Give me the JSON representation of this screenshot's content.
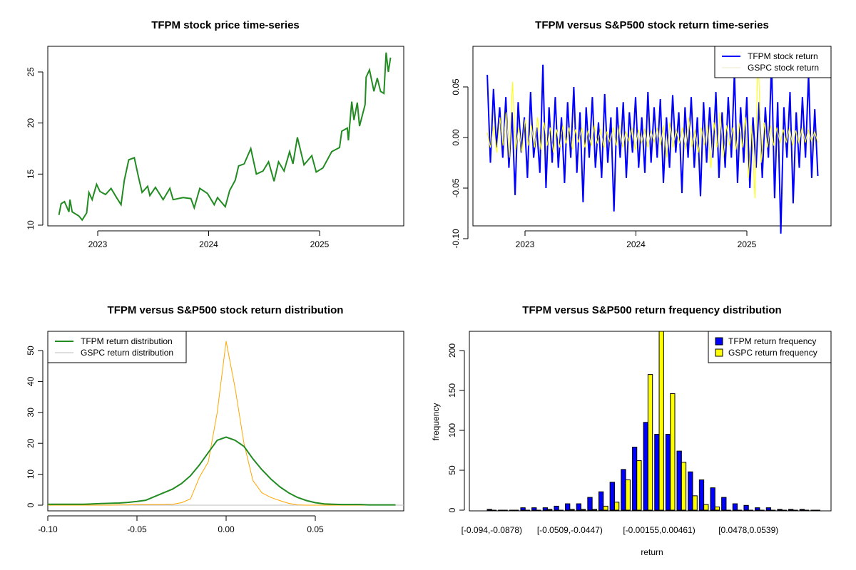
{
  "chart_data": [
    {
      "type": "line",
      "title": "TFPM stock price time-series",
      "xlabel": "",
      "ylabel": "",
      "xticks": [
        "2023",
        "2024",
        "2025"
      ],
      "xtick_values": [
        2023,
        2024,
        2025
      ],
      "yticks": [
        "10",
        "15",
        "20",
        "25"
      ],
      "ytick_values": [
        10,
        15,
        20,
        25
      ],
      "xlim": [
        2022.55,
        2025.75
      ],
      "ylim": [
        9.95,
        27.6
      ],
      "color": "#228B22",
      "x": [
        2022.65,
        2022.67,
        2022.7,
        2022.74,
        2022.75,
        2022.77,
        2022.83,
        2022.86,
        2022.9,
        2022.92,
        2022.95,
        2022.99,
        2023.02,
        2023.07,
        2023.12,
        2023.17,
        2023.21,
        2023.24,
        2023.28,
        2023.33,
        2023.37,
        2023.4,
        2023.45,
        2023.47,
        2023.52,
        2023.59,
        2023.65,
        2023.68,
        2023.77,
        2023.84,
        2023.87,
        2023.92,
        2023.99,
        2024.05,
        2024.08,
        2024.15,
        2024.19,
        2024.24,
        2024.27,
        2024.32,
        2024.38,
        2024.43,
        2024.49,
        2024.54,
        2024.59,
        2024.63,
        2024.68,
        2024.73,
        2024.76,
        2024.8,
        2024.86,
        2024.93,
        2024.97,
        2025.03,
        2025.11,
        2025.18,
        2025.2,
        2025.25,
        2025.26,
        2025.29,
        2025.31,
        2025.34,
        2025.36,
        2025.41,
        2025.42,
        2025.45,
        2025.49,
        2025.52,
        2025.55,
        2025.58,
        2025.6,
        2025.62,
        2025.64
      ],
      "y": [
        11.0,
        12.1,
        12.3,
        11.3,
        12.5,
        11.3,
        10.9,
        10.5,
        11.2,
        13.2,
        12.5,
        14.0,
        13.3,
        13.0,
        13.6,
        12.7,
        12.0,
        14.4,
        16.4,
        16.6,
        14.6,
        13.2,
        13.8,
        12.9,
        13.7,
        12.5,
        13.6,
        12.5,
        12.7,
        12.6,
        11.7,
        13.6,
        13.1,
        12.0,
        12.7,
        11.8,
        13.4,
        14.4,
        15.8,
        16.0,
        17.5,
        15.0,
        15.3,
        16.2,
        14.3,
        16.2,
        15.3,
        17.2,
        16.0,
        18.6,
        15.9,
        16.8,
        15.2,
        15.6,
        17.2,
        17.6,
        19.2,
        19.5,
        18.3,
        22.1,
        20.3,
        22.0,
        19.7,
        21.8,
        24.5,
        25.2,
        23.1,
        24.4,
        23.1,
        22.9,
        26.9,
        25.0,
        26.4
      ]
    },
    {
      "type": "line",
      "title": "TFPM versus S&P500 stock return time-series",
      "xticks": [
        "2023",
        "2024",
        "2025"
      ],
      "xtick_values": [
        2023,
        2024,
        2025
      ],
      "yticks": [
        "-0.10",
        "-0.05",
        "0.00",
        "0.05"
      ],
      "ytick_values": [
        -0.1,
        -0.05,
        0.0,
        0.05
      ],
      "xlim": [
        2022.55,
        2025.75
      ],
      "ylim": [
        -0.1,
        0.09
      ],
      "x_start": 2022.66,
      "x_end": 2025.64,
      "legend_position": "top-right",
      "series": [
        {
          "name": "TFPM stock return",
          "color": "#0000FF",
          "values": [
            0.062,
            -0.025,
            0.048,
            -0.01,
            0.03,
            -0.02,
            0.04,
            -0.03,
            0.025,
            -0.057,
            0.035,
            -0.015,
            0.02,
            -0.04,
            0.045,
            -0.02,
            0.01,
            -0.035,
            0.072,
            -0.05,
            0.03,
            -0.025,
            0.04,
            -0.03,
            0.02,
            -0.045,
            0.035,
            -0.02,
            0.05,
            -0.035,
            0.025,
            -0.064,
            0.03,
            -0.02,
            0.04,
            -0.03,
            0.015,
            -0.04,
            0.043,
            -0.025,
            0.02,
            -0.073,
            0.03,
            -0.02,
            0.035,
            -0.04,
            0.025,
            -0.015,
            0.04,
            -0.03,
            0.02,
            -0.035,
            0.045,
            -0.025,
            0.03,
            -0.02,
            0.038,
            -0.045,
            0.02,
            -0.03,
            0.042,
            -0.015,
            0.025,
            -0.055,
            0.03,
            -0.02,
            0.04,
            -0.03,
            0.02,
            -0.058,
            0.035,
            -0.025,
            0.03,
            -0.02,
            0.045,
            -0.04,
            0.025,
            -0.03,
            0.04,
            -0.02,
            0.065,
            -0.045,
            0.03,
            -0.025,
            0.04,
            -0.05,
            0.02,
            -0.03,
            0.035,
            -0.04,
            0.03,
            -0.02,
            0.075,
            -0.06,
            0.035,
            -0.095,
            0.03,
            -0.02,
            0.045,
            -0.065,
            0.025,
            -0.03,
            0.04,
            -0.02,
            0.063,
            -0.04,
            0.028,
            -0.038
          ]
        },
        {
          "name": "GSPC stock return",
          "color": "#FFFF00",
          "values": [
            0.005,
            -0.01,
            0.012,
            -0.015,
            0.02,
            -0.008,
            0.025,
            -0.02,
            0.055,
            -0.012,
            0.01,
            -0.015,
            0.018,
            -0.008,
            0.012,
            -0.01,
            0.02,
            -0.012,
            0.015,
            -0.008,
            0.01,
            -0.015,
            0.008,
            -0.01,
            0.012,
            -0.006,
            0.01,
            -0.012,
            0.008,
            -0.005,
            0.01,
            -0.01,
            0.007,
            -0.008,
            0.012,
            -0.006,
            0.009,
            -0.01,
            0.006,
            -0.005,
            0.01,
            -0.008,
            0.012,
            -0.01,
            0.006,
            -0.004,
            0.01,
            -0.012,
            0.008,
            -0.006,
            0.009,
            -0.01,
            0.007,
            -0.005,
            0.01,
            -0.008,
            0.012,
            -0.02,
            0.015,
            -0.01,
            0.008,
            -0.006,
            0.01,
            -0.012,
            0.02,
            -0.01,
            0.008,
            -0.015,
            0.01,
            -0.008,
            0.012,
            -0.03,
            0.015,
            -0.01,
            0.025,
            -0.02,
            0.012,
            -0.008,
            0.01,
            -0.012,
            0.015,
            -0.01,
            0.02,
            -0.04,
            0.012,
            -0.06,
            0.09,
            -0.025,
            0.015,
            -0.01,
            0.012,
            -0.008,
            0.01,
            -0.006,
            0.008,
            -0.005,
            0.01,
            -0.008,
            0.007,
            -0.006,
            0.01,
            -0.005,
            0.008,
            -0.004,
            0.006,
            -0.005
          ]
        }
      ]
    },
    {
      "type": "line",
      "title": "TFPM versus S&P500 stock return distribution",
      "xticks": [
        "-0.10",
        "-0.05",
        "0.00",
        "0.05"
      ],
      "xtick_values": [
        -0.1,
        -0.05,
        0.0,
        0.05
      ],
      "yticks": [
        "0",
        "10",
        "20",
        "30",
        "40",
        "50"
      ],
      "ytick_values": [
        0,
        10,
        20,
        30,
        40,
        50
      ],
      "xlim": [
        -0.1,
        0.1
      ],
      "ylim": [
        -2,
        56
      ],
      "legend_position": "top-left",
      "x": [
        -0.1,
        -0.095,
        -0.09,
        -0.085,
        -0.08,
        -0.075,
        -0.07,
        -0.065,
        -0.06,
        -0.055,
        -0.05,
        -0.045,
        -0.04,
        -0.035,
        -0.03,
        -0.025,
        -0.02,
        -0.015,
        -0.01,
        -0.005,
        0,
        0.005,
        0.01,
        0.015,
        0.02,
        0.025,
        0.03,
        0.035,
        0.04,
        0.045,
        0.05,
        0.055,
        0.06,
        0.065,
        0.07,
        0.075,
        0.08,
        0.085,
        0.09,
        0.095
      ],
      "series": [
        {
          "name": "TFPM return distribution",
          "color": "#228B22",
          "values": [
            0.3,
            0.3,
            0.3,
            0.3,
            0.3,
            0.4,
            0.5,
            0.6,
            0.7,
            0.9,
            1.2,
            1.6,
            2.8,
            4.0,
            5.2,
            7.0,
            9.5,
            13.0,
            17.0,
            21.0,
            22.0,
            21.0,
            19.0,
            15.0,
            11.5,
            8.5,
            6.0,
            4.0,
            2.5,
            1.5,
            0.8,
            0.4,
            0.3,
            0.2,
            0.2,
            0.2,
            0.1,
            0.1,
            0.1,
            0.1
          ]
        },
        {
          "name": "GSPC return distribution",
          "color": "#FFA500",
          "values": [
            0,
            0,
            0,
            0,
            0,
            0,
            0,
            0,
            0.1,
            0.1,
            0.2,
            0.2,
            0.2,
            0.2,
            0.3,
            0.8,
            2.0,
            9.0,
            14.0,
            30.0,
            53.0,
            38.0,
            20.0,
            8.0,
            4.0,
            2.5,
            1.5,
            0.6,
            0.1,
            0,
            0,
            0,
            0,
            0,
            0,
            0,
            0,
            0,
            0,
            0
          ]
        }
      ]
    },
    {
      "type": "bar",
      "title": "TFPM versus S&P500 return frequency distribution",
      "xlabel": "return",
      "ylabel": "frequency",
      "yticks": [
        "0",
        "50",
        "100",
        "150",
        "200"
      ],
      "ytick_values": [
        0,
        50,
        100,
        150,
        200
      ],
      "ylim": [
        0,
        225
      ],
      "legend_position": "top-right",
      "category_labels_shown": [
        {
          "index": 0,
          "label": "[-0.094,-0.0878)"
        },
        {
          "index": 7,
          "label": "[-0.0509,-0.0447)"
        },
        {
          "index": 15,
          "label": "[-0.00155,0.00461)"
        },
        {
          "index": 23,
          "label": "[0.0478,0.0539)"
        }
      ],
      "series": [
        {
          "name": "TFPM return frequency",
          "color": "#0000FF",
          "values": [
            1,
            0,
            0,
            3,
            3,
            3,
            5,
            8,
            8,
            16,
            23,
            35,
            51,
            79,
            110,
            95,
            95,
            74,
            48,
            38,
            28,
            16,
            8,
            6,
            3,
            3,
            1,
            1,
            1,
            0
          ]
        },
        {
          "name": "GSPC return frequency",
          "color": "#FFFF00",
          "values": [
            0,
            0,
            0,
            0,
            0,
            1,
            0,
            1,
            1,
            1,
            5,
            10,
            38,
            62,
            170,
            225,
            146,
            60,
            18,
            7,
            4,
            0,
            0,
            0,
            0,
            0,
            0,
            0,
            0,
            0
          ]
        }
      ]
    }
  ]
}
